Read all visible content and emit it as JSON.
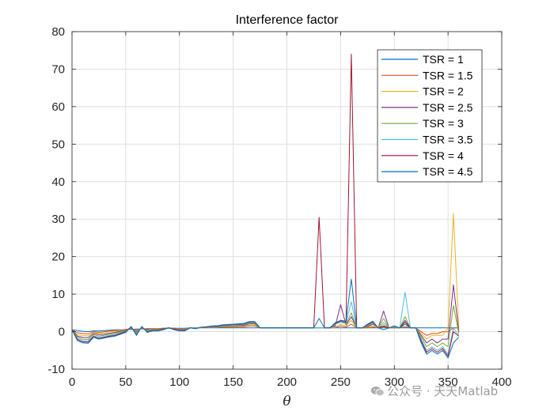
{
  "watermark": {
    "text": "公众号 · 天天Matlab",
    "icon": "wechat-icon"
  },
  "chart_data": {
    "type": "line",
    "title": "Interference factor",
    "xlabel": "θ",
    "ylabel": "",
    "xlim": [
      0,
      400
    ],
    "ylim": [
      -10,
      80
    ],
    "xticks": [
      0,
      50,
      100,
      150,
      200,
      250,
      300,
      350,
      400
    ],
    "yticks": [
      -10,
      0,
      10,
      20,
      30,
      40,
      50,
      60,
      70,
      80
    ],
    "grid": true,
    "legend_position": "top-right",
    "x": [
      0,
      5,
      10,
      15,
      20,
      25,
      30,
      35,
      40,
      45,
      50,
      55,
      60,
      65,
      70,
      75,
      80,
      85,
      90,
      95,
      100,
      105,
      110,
      115,
      120,
      125,
      130,
      135,
      140,
      145,
      150,
      155,
      160,
      165,
      170,
      175,
      180,
      185,
      190,
      195,
      200,
      205,
      210,
      215,
      220,
      225,
      230,
      235,
      240,
      245,
      250,
      255,
      260,
      265,
      270,
      275,
      280,
      285,
      290,
      295,
      300,
      305,
      310,
      315,
      320,
      325,
      330,
      335,
      340,
      345,
      350,
      355,
      360
    ],
    "series": [
      {
        "name": "TSR = 1",
        "color": "#0072BD",
        "values": [
          0.5,
          0.3,
          0.1,
          0,
          0.2,
          0.2,
          0.3,
          0.4,
          0.5,
          0.5,
          0.6,
          0.6,
          0.7,
          0.7,
          0.8,
          0.8,
          0.8,
          0.9,
          0.9,
          0.9,
          0.9,
          0.9,
          1,
          1,
          1,
          1,
          1,
          1,
          1,
          1,
          1,
          1,
          1,
          1,
          1,
          1,
          1,
          1,
          1,
          1,
          1,
          1,
          1,
          1,
          1,
          1,
          1,
          1,
          1,
          1,
          1,
          1,
          1,
          1,
          1,
          1,
          1,
          1,
          1,
          1,
          1,
          1,
          1,
          1,
          1,
          1,
          1,
          1,
          1,
          1,
          1,
          1,
          1
        ]
      },
      {
        "name": "TSR = 1.5",
        "color": "#D95319",
        "values": [
          0.5,
          -0.3,
          -0.5,
          -0.6,
          0,
          -0.2,
          0,
          0.2,
          0.3,
          0.4,
          0.6,
          0.8,
          0.5,
          0.8,
          0.6,
          0.8,
          0.8,
          0.9,
          1,
          0.9,
          0.8,
          0.8,
          1,
          0.9,
          1,
          1,
          1.1,
          1.1,
          1.2,
          1.2,
          1.2,
          1.3,
          1.3,
          1.5,
          1.5,
          1,
          1,
          1,
          1,
          1,
          1,
          1,
          1,
          1,
          1,
          1,
          1,
          1,
          1,
          1.1,
          1.5,
          1.2,
          2,
          1,
          1,
          1,
          1.2,
          1,
          1.3,
          1,
          1,
          1,
          1.3,
          1,
          1,
          0,
          -1,
          -0.5,
          -0.5,
          0,
          0,
          1,
          1
        ]
      },
      {
        "name": "TSR = 2",
        "color": "#EDB120",
        "values": [
          0.5,
          -0.8,
          -1,
          -1.1,
          -0.2,
          -0.5,
          -0.3,
          0,
          0.1,
          0.3,
          0.5,
          0.9,
          0.2,
          0.9,
          0.4,
          0.7,
          0.7,
          0.8,
          1,
          0.8,
          0.7,
          0.7,
          1,
          0.9,
          1,
          1,
          1.1,
          1.2,
          1.3,
          1.4,
          1.4,
          1.5,
          1.5,
          1.8,
          1.8,
          1,
          1,
          1,
          1,
          1,
          1,
          1,
          1,
          1,
          1,
          1,
          1,
          1,
          1,
          1.2,
          2,
          1.5,
          3,
          1,
          1,
          1.2,
          1.5,
          1,
          2,
          1,
          1.1,
          1,
          2,
          1,
          1,
          -0.5,
          -2,
          -1,
          -1,
          -1,
          1,
          31.5,
          0.5
        ]
      },
      {
        "name": "TSR = 2.5",
        "color": "#7E2F8E",
        "values": [
          0.5,
          -1.2,
          -1.5,
          -1.6,
          -0.5,
          -0.8,
          -0.7,
          -0.4,
          -0.2,
          0.1,
          0.4,
          1,
          0,
          1,
          0.3,
          0.6,
          0.6,
          0.8,
          1,
          0.8,
          0.6,
          0.6,
          1,
          0.9,
          1.1,
          1.1,
          1.2,
          1.3,
          1.4,
          1.5,
          1.6,
          1.7,
          1.7,
          2.1,
          2.1,
          1,
          1,
          1,
          1,
          1,
          1,
          1,
          1,
          1,
          1,
          1,
          1,
          1,
          1,
          1.5,
          7.2,
          1.8,
          4,
          1,
          1,
          1.3,
          2,
          1,
          5.5,
          1,
          1.2,
          1,
          3,
          1,
          1,
          -1,
          -3,
          -2,
          -3,
          -2,
          -2,
          12.5,
          0
        ]
      },
      {
        "name": "TSR = 3",
        "color": "#77AC30",
        "values": [
          0.5,
          -1.5,
          -2,
          -2.1,
          -0.8,
          -1.2,
          -1,
          -0.7,
          -0.5,
          -0.1,
          0.2,
          1.1,
          -0.3,
          1.1,
          0.2,
          0.5,
          0.5,
          0.7,
          1,
          0.7,
          0.5,
          0.5,
          1,
          0.8,
          1.1,
          1.1,
          1.3,
          1.4,
          1.5,
          1.6,
          1.7,
          1.8,
          1.9,
          2.3,
          2.3,
          1,
          1,
          1,
          1,
          1,
          1,
          1,
          1,
          1,
          1,
          1,
          1,
          1,
          1,
          1.8,
          3,
          2,
          5,
          1,
          1,
          1.5,
          2.2,
          1,
          3.5,
          1,
          1.3,
          1,
          4,
          1,
          1,
          -1.5,
          -4,
          -3,
          -4,
          -3,
          -4,
          7,
          -0.5
        ]
      },
      {
        "name": "TSR = 3.5",
        "color": "#4DBEEE",
        "values": [
          0.5,
          -1.8,
          -2.4,
          -2.5,
          -1.1,
          -1.5,
          -1.3,
          -1,
          -0.8,
          -0.3,
          0.1,
          1.2,
          -0.6,
          1.2,
          0,
          0.4,
          0.4,
          0.6,
          1,
          0.6,
          0.4,
          0.4,
          1,
          0.8,
          1.1,
          1.2,
          1.3,
          1.5,
          1.6,
          1.7,
          1.8,
          1.9,
          2,
          2.5,
          2.5,
          1,
          1,
          1,
          1,
          1,
          1,
          1,
          1,
          1,
          1,
          1,
          1,
          1,
          1,
          2,
          2.5,
          2.2,
          8,
          1,
          1,
          1.7,
          2.5,
          1,
          2.5,
          1,
          1.4,
          1,
          10.5,
          1,
          1,
          -2,
          -5,
          -4,
          -5,
          -4,
          -6,
          1,
          -1
        ]
      },
      {
        "name": "TSR = 4",
        "color": "#A2142F",
        "values": [
          0.5,
          -2.1,
          -2.7,
          -2.8,
          -1.3,
          -1.8,
          -1.5,
          -1.2,
          -1,
          -0.5,
          0,
          1.3,
          -0.8,
          1.3,
          -0.1,
          0.3,
          0.3,
          0.6,
          1,
          0.6,
          0.3,
          0.3,
          1,
          0.8,
          1.2,
          1.2,
          1.4,
          1.5,
          1.7,
          1.8,
          1.9,
          2,
          2.1,
          2.6,
          2.6,
          1,
          1,
          1,
          1,
          1,
          1,
          1,
          1,
          1,
          1,
          1,
          30.5,
          1,
          1,
          2.2,
          2.8,
          2.5,
          74,
          1,
          1,
          1.8,
          2.6,
          1,
          1.5,
          1,
          1.5,
          1,
          2.5,
          1,
          1,
          -2.5,
          -5.5,
          -4.5,
          -5.5,
          -4.5,
          -6.5,
          0,
          -1.2
        ]
      },
      {
        "name": "TSR = 4.5",
        "color": "#0072BD",
        "values": [
          0.5,
          -2.4,
          -3,
          -3.1,
          -1.5,
          -2,
          -1.7,
          -1.4,
          -1.2,
          -0.7,
          -0.2,
          1.4,
          -1,
          1.4,
          -0.2,
          0.2,
          0.2,
          0.5,
          1,
          0.5,
          0.2,
          0.2,
          1,
          0.8,
          1.2,
          1.3,
          1.5,
          1.6,
          1.8,
          1.9,
          2,
          2.1,
          2.2,
          2.7,
          2.7,
          1,
          1,
          1,
          1,
          1,
          1,
          1,
          1,
          1,
          1,
          1,
          3.5,
          1,
          1,
          2.4,
          3,
          2.8,
          14,
          1,
          1,
          2,
          2.8,
          1,
          0.5,
          1,
          1.5,
          1,
          2,
          1,
          1,
          -3,
          -6,
          -5,
          -6,
          -5,
          -7,
          -3,
          -1.5
        ]
      }
    ]
  }
}
